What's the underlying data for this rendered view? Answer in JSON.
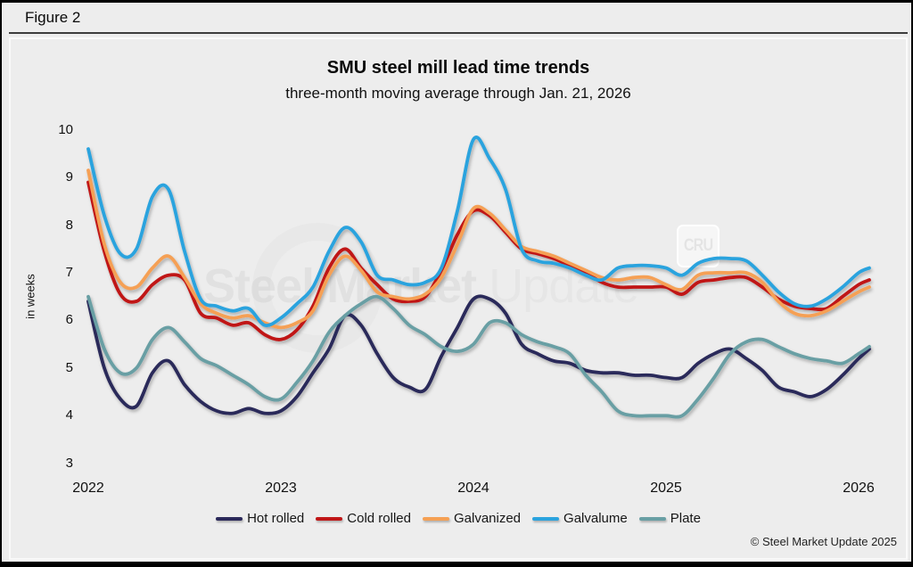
{
  "figure": {
    "label": "Figure 2"
  },
  "chart": {
    "title": "SMU steel mill lead time trends",
    "subtitle": "three-month moving average through Jan. 21, 2026",
    "y_axis_label": "in weeks",
    "copyright": "© Steel Market Update 2025",
    "watermark": {
      "part1": "Steel Market",
      "part2": " Update",
      "cru": "CRU"
    }
  },
  "chart_data": {
    "type": "line",
    "title": "SMU steel mill lead time trends",
    "subtitle": "three-month moving average through Jan. 21, 2026",
    "ylabel": "in weeks",
    "ylim": [
      3,
      10
    ],
    "y_ticks": [
      3,
      4,
      5,
      6,
      7,
      8,
      9,
      10
    ],
    "x_year_ticks": [
      2022,
      2023,
      2024,
      2025,
      2026
    ],
    "grid": false,
    "legend_position": "bottom",
    "x_start": "2022-01",
    "x_step": "monthly",
    "last_point_date": "2026-01-21",
    "series": [
      {
        "name": "Hot rolled",
        "color": "#2b295a",
        "values": [
          6.4,
          5.0,
          4.35,
          4.2,
          4.9,
          5.15,
          4.65,
          4.3,
          4.1,
          4.05,
          4.15,
          4.05,
          4.1,
          4.4,
          4.9,
          5.4,
          6.1,
          5.9,
          5.3,
          4.8,
          4.6,
          4.55,
          5.25,
          5.85,
          6.45,
          6.45,
          6.15,
          5.5,
          5.3,
          5.15,
          5.1,
          4.95,
          4.9,
          4.9,
          4.85,
          4.85,
          4.8,
          4.8,
          5.1,
          5.3,
          5.4,
          5.2,
          4.95,
          4.6,
          4.5,
          4.4,
          4.55,
          4.85,
          5.2,
          5.4
        ]
      },
      {
        "name": "Cold rolled",
        "color": "#c01718",
        "values": [
          8.9,
          7.45,
          6.55,
          6.4,
          6.75,
          6.95,
          6.85,
          6.15,
          6.05,
          5.9,
          5.95,
          5.7,
          5.6,
          5.8,
          6.3,
          7.1,
          7.5,
          7.1,
          6.75,
          6.45,
          6.4,
          6.5,
          7.05,
          7.8,
          8.3,
          8.2,
          7.85,
          7.5,
          7.4,
          7.3,
          7.15,
          7.0,
          6.8,
          6.7,
          6.7,
          6.7,
          6.7,
          6.55,
          6.8,
          6.85,
          6.9,
          6.9,
          6.7,
          6.45,
          6.3,
          6.25,
          6.25,
          6.5,
          6.75,
          6.85
        ]
      },
      {
        "name": "Galvanized",
        "color": "#f5a054",
        "values": [
          9.15,
          7.6,
          6.8,
          6.7,
          7.1,
          7.35,
          6.9,
          6.35,
          6.15,
          6.05,
          6.1,
          5.95,
          5.85,
          5.95,
          6.2,
          6.95,
          7.35,
          7.05,
          6.6,
          6.5,
          6.45,
          6.55,
          6.9,
          7.6,
          8.35,
          8.25,
          7.9,
          7.55,
          7.45,
          7.35,
          7.2,
          7.05,
          6.9,
          6.85,
          6.9,
          6.9,
          6.75,
          6.65,
          6.95,
          7.0,
          7.0,
          7.0,
          6.8,
          6.4,
          6.15,
          6.1,
          6.2,
          6.4,
          6.6,
          6.7
        ]
      },
      {
        "name": "Galvalume",
        "color": "#2ba3de",
        "values": [
          9.6,
          8.2,
          7.4,
          7.5,
          8.6,
          8.75,
          7.45,
          6.45,
          6.3,
          6.2,
          6.25,
          5.9,
          6.05,
          6.35,
          6.7,
          7.45,
          7.95,
          7.65,
          6.95,
          6.85,
          6.75,
          6.8,
          7.1,
          8.3,
          9.8,
          9.4,
          8.75,
          7.5,
          7.25,
          7.2,
          7.1,
          6.95,
          6.85,
          7.1,
          7.15,
          7.15,
          7.1,
          6.95,
          7.2,
          7.3,
          7.3,
          7.25,
          6.95,
          6.6,
          6.35,
          6.3,
          6.45,
          6.7,
          7.0,
          7.1
        ]
      },
      {
        "name": "Plate",
        "color": "#699fa4",
        "values": [
          6.5,
          5.4,
          4.9,
          5.0,
          5.6,
          5.85,
          5.55,
          5.2,
          5.05,
          4.85,
          4.65,
          4.4,
          4.35,
          4.7,
          5.15,
          5.75,
          6.1,
          6.35,
          6.5,
          6.25,
          5.9,
          5.7,
          5.45,
          5.35,
          5.5,
          5.95,
          5.95,
          5.7,
          5.55,
          5.45,
          5.3,
          4.85,
          4.5,
          4.1,
          4.0,
          4.0,
          4.0,
          4.0,
          4.35,
          4.8,
          5.3,
          5.55,
          5.6,
          5.45,
          5.3,
          5.2,
          5.15,
          5.1,
          5.3,
          5.45
        ]
      }
    ]
  }
}
